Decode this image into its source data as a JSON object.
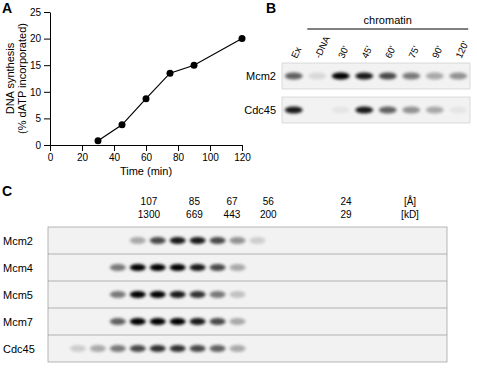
{
  "chart_data": {
    "type": "line",
    "title": "A",
    "x": [
      30,
      45,
      60,
      75,
      90,
      120
    ],
    "values": [
      0.8,
      3.8,
      8.7,
      13.5,
      15,
      20
    ],
    "xlim": [
      0,
      120
    ],
    "xticks": [
      0,
      20,
      40,
      60,
      80,
      100,
      120
    ],
    "ylim": [
      0,
      25
    ],
    "yticks": [
      0,
      5,
      10,
      15,
      20,
      25
    ],
    "xlabel": "Time (min)",
    "ylabel": [
      "DNA synthesis",
      "(% dATP incorporated)"
    ],
    "color": "#000000",
    "marker": "circle"
  },
  "panel_b": {
    "label": "B",
    "lanes": [
      "Ex",
      "-DNA",
      "30'",
      "45'",
      "60'",
      "75'",
      "90'",
      "120'"
    ],
    "group": {
      "label": "chromatin",
      "from": 1,
      "to": 7
    },
    "rows": [
      {
        "name": "Mcm2",
        "intensities": [
          0.6,
          0.1,
          1,
          0.9,
          0.7,
          0.5,
          0.3,
          0.4
        ]
      },
      {
        "name": "Cdc45",
        "intensities": [
          0.9,
          0,
          0.05,
          0.9,
          0.6,
          0.4,
          0.3,
          0.05
        ]
      }
    ]
  },
  "panel_c": {
    "label": "C",
    "markers": [
      {
        "fraction": 4.56,
        "radius": 107,
        "mass": 1300
      },
      {
        "fraction": 6.84,
        "radius": 85,
        "mass": 669
      },
      {
        "fraction": 8.72,
        "radius": 67,
        "mass": 443
      },
      {
        "fraction": 10.54,
        "radius": 56,
        "mass": 200
      },
      {
        "fraction": 14.44,
        "radius": 24,
        "mass": 29
      }
    ],
    "units": [
      "[Å]",
      "[kD]"
    ],
    "rows": [
      {
        "name": "Mcm2",
        "intensities": [
          0,
          0,
          0,
          0,
          0.3,
          0.7,
          0.9,
          0.9,
          0.7,
          0.4,
          0.15,
          0,
          0,
          0,
          0,
          0,
          0,
          0,
          0,
          0
        ]
      },
      {
        "name": "Mcm4",
        "intensities": [
          0,
          0,
          0,
          0.5,
          1,
          1,
          1,
          0.9,
          0.7,
          0.3,
          0,
          0,
          0,
          0,
          0,
          0,
          0,
          0,
          0,
          0
        ]
      },
      {
        "name": "Mcm5",
        "intensities": [
          0,
          0,
          0,
          0.5,
          1,
          1,
          0.9,
          0.8,
          0.5,
          0.2,
          0,
          0,
          0,
          0,
          0,
          0,
          0,
          0,
          0,
          0
        ]
      },
      {
        "name": "Mcm7",
        "intensities": [
          0,
          0,
          0,
          0.6,
          1,
          1,
          1,
          0.9,
          0.7,
          0.3,
          0,
          0,
          0,
          0,
          0,
          0,
          0,
          0,
          0,
          0
        ]
      },
      {
        "name": "Cdc45",
        "intensities": [
          0,
          0.15,
          0.3,
          0.5,
          0.7,
          0.8,
          0.8,
          0.7,
          0.6,
          0.3,
          0,
          0,
          0,
          0,
          0,
          0,
          0,
          0,
          0,
          0
        ]
      }
    ]
  }
}
